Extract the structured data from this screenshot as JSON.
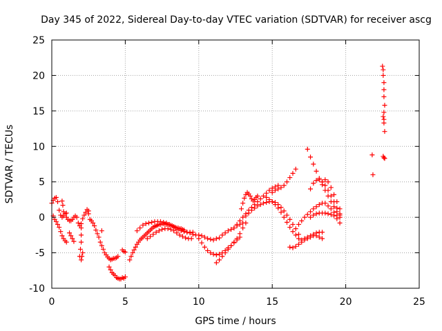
{
  "chart_data": {
    "type": "scatter",
    "title": "Day 345 of 2022, Sidereal Day-to-day VTEC variation (SDTVAR) for receiver ascg",
    "xlabel": "GPS time / hours",
    "ylabel": "SDTVAR / TECUs",
    "xlim": [
      0,
      25
    ],
    "ylim": [
      -10,
      25
    ],
    "xticks": [
      0,
      5,
      10,
      15,
      20,
      25
    ],
    "yticks": [
      -10,
      -5,
      0,
      5,
      10,
      15,
      20,
      25
    ],
    "xtick_labels": [
      "0",
      "5",
      "10",
      "15",
      "20",
      "25"
    ],
    "ytick_labels": [
      "-10",
      "-5",
      "0",
      "5",
      "10",
      "15",
      "20",
      "25"
    ],
    "grid": true,
    "marker": "+",
    "color": "#ff0000",
    "series": [
      {
        "name": "a_early",
        "x": [
          0.0,
          0.1,
          0.2,
          0.3,
          0.4,
          0.5,
          0.6,
          0.7,
          0.8,
          0.9,
          1.0
        ],
        "y": [
          2.0,
          2.4,
          2.7,
          2.8,
          2.2,
          1.0,
          0.3,
          0.0,
          0.2,
          0.5,
          0.6
        ]
      },
      {
        "name": "b_early",
        "x": [
          0.1,
          0.2,
          0.3,
          0.4,
          0.5,
          0.6,
          0.7,
          0.8,
          0.9,
          1.0
        ],
        "y": [
          0.2,
          -0.3,
          -0.6,
          -1.0,
          -1.4,
          -2.0,
          -2.6,
          -3.0,
          -3.3,
          -3.5
        ]
      },
      {
        "name": "c_early",
        "x": [
          0.7,
          0.75,
          0.8
        ],
        "y": [
          2.3,
          1.7,
          0.8
        ]
      },
      {
        "name": "d_early",
        "x": [
          1.2,
          1.3,
          1.4,
          1.5
        ],
        "y": [
          -2.2,
          -2.6,
          -3.0,
          -3.4
        ]
      },
      {
        "name": "e_early",
        "x": [
          1.0,
          1.1,
          1.2,
          1.3,
          1.4,
          1.5,
          1.6,
          1.7,
          1.8,
          1.9,
          2.0,
          2.1,
          2.2,
          2.3,
          2.4,
          2.5
        ],
        "y": [
          0.0,
          -0.3,
          -0.5,
          -0.5,
          -0.3,
          0.0,
          0.2,
          0.0,
          -0.8,
          -1.2,
          -0.9,
          -0.2,
          0.3,
          0.7,
          1.1,
          0.9
        ]
      },
      {
        "name": "f_early",
        "x": [
          2.0,
          2.0,
          2.0,
          1.95,
          1.9
        ],
        "y": [
          -1.5,
          -2.5,
          -3.5,
          -4.5,
          -5.5
        ]
      },
      {
        "name": "g_early",
        "x": [
          2.1,
          2.05,
          2.0
        ],
        "y": [
          -5.0,
          -5.5,
          -6.0
        ]
      },
      {
        "name": "h_early",
        "x": [
          2.5,
          2.6,
          2.7,
          2.8,
          2.9,
          3.0,
          3.1,
          3.2,
          3.3,
          3.4,
          3.5,
          3.6,
          3.7,
          3.8,
          3.9,
          4.0,
          4.1,
          4.2,
          4.3,
          4.4,
          4.5
        ],
        "y": [
          0.5,
          -0.3,
          -0.5,
          -0.8,
          -1.2,
          -1.8,
          -2.3,
          -2.8,
          -3.5,
          -4.0,
          -4.5,
          -5.0,
          -5.3,
          -5.6,
          -5.8,
          -6.0,
          -5.9,
          -5.8,
          -5.8,
          -5.7,
          -5.5
        ]
      },
      {
        "name": "i_early",
        "x": [
          3.4
        ],
        "y": [
          -1.9
        ]
      },
      {
        "name": "j_mid",
        "x": [
          3.9,
          4.0,
          4.1,
          4.2,
          4.3,
          4.4,
          4.5,
          4.6,
          4.7,
          4.8,
          4.9,
          5.0
        ],
        "y": [
          -7.0,
          -7.4,
          -7.8,
          -8.0,
          -8.2,
          -8.5,
          -8.6,
          -8.7,
          -8.7,
          -8.5,
          -8.6,
          -8.4
        ]
      },
      {
        "name": "k_mid",
        "x": [
          4.8,
          4.9,
          5.0
        ],
        "y": [
          -4.6,
          -4.8,
          -4.9
        ]
      },
      {
        "name": "l_main",
        "x": [
          5.3,
          5.4,
          5.5,
          5.6,
          5.7,
          5.8,
          5.9,
          6.0,
          6.1,
          6.2,
          6.3,
          6.4,
          6.5,
          6.6,
          6.7,
          6.8,
          6.9,
          7.0,
          7.1,
          7.2,
          7.3,
          7.4,
          7.5,
          7.6,
          7.7,
          7.8,
          7.9,
          8.0,
          8.1,
          8.2,
          8.3,
          8.4,
          8.5,
          8.6,
          8.7,
          8.8,
          8.9,
          9.0
        ],
        "y": [
          -6.0,
          -5.5,
          -5.0,
          -4.6,
          -4.2,
          -3.8,
          -3.5,
          -3.2,
          -3.0,
          -2.8,
          -2.6,
          -2.4,
          -2.2,
          -2.0,
          -1.8,
          -1.6,
          -1.4,
          -1.3,
          -1.2,
          -1.1,
          -1.0,
          -1.0,
          -0.9,
          -0.9,
          -0.9,
          -1.0,
          -1.0,
          -1.1,
          -1.1,
          -1.2,
          -1.3,
          -1.4,
          -1.5,
          -1.5,
          -1.6,
          -1.6,
          -1.7,
          -1.8
        ]
      },
      {
        "name": "m_main",
        "x": [
          5.8,
          6.0,
          6.2,
          6.4,
          6.6,
          6.8,
          7.0,
          7.2,
          7.4,
          7.6,
          7.8,
          8.0,
          8.2,
          8.4,
          8.6,
          8.8,
          9.0,
          9.2,
          9.4,
          9.6
        ],
        "y": [
          -1.9,
          -1.5,
          -1.1,
          -0.9,
          -0.8,
          -0.7,
          -0.6,
          -0.6,
          -0.6,
          -0.7,
          -0.8,
          -1.0,
          -1.2,
          -1.5,
          -1.7,
          -1.9,
          -2.0,
          -2.1,
          -2.1,
          -2.1
        ]
      },
      {
        "name": "n_main",
        "x": [
          6.5,
          6.7,
          6.9,
          7.1,
          7.3,
          7.5,
          7.7,
          7.9,
          8.1,
          8.3,
          8.5,
          8.7,
          8.9,
          9.1,
          9.3,
          9.5
        ],
        "y": [
          -3.0,
          -2.7,
          -2.4,
          -2.1,
          -1.9,
          -1.7,
          -1.6,
          -1.6,
          -1.7,
          -1.9,
          -2.2,
          -2.5,
          -2.7,
          -2.9,
          -3.0,
          -3.0
        ]
      },
      {
        "name": "o_main",
        "x": [
          9.0,
          9.2,
          9.4,
          9.6,
          9.8,
          10.0,
          10.2,
          10.4,
          10.6,
          10.8,
          11.0,
          11.2,
          11.4,
          11.6,
          11.8,
          12.0,
          12.2,
          12.4,
          12.6,
          12.8,
          13.0
        ],
        "y": [
          -2.0,
          -2.1,
          -2.2,
          -2.4,
          -2.5,
          -2.5,
          -2.6,
          -2.8,
          -3.0,
          -3.1,
          -3.2,
          -3.0,
          -2.9,
          -2.5,
          -2.2,
          -1.9,
          -1.7,
          -1.5,
          -1.2,
          -1.0,
          -0.8
        ]
      },
      {
        "name": "p_main",
        "x": [
          10.0,
          10.2,
          10.4,
          10.6,
          10.8,
          11.0,
          11.2,
          11.4,
          11.6,
          11.8,
          12.0,
          12.2,
          12.4,
          12.6,
          12.8
        ],
        "y": [
          -3.0,
          -3.6,
          -4.2,
          -4.7,
          -5.0,
          -5.2,
          -5.3,
          -5.2,
          -5.0,
          -4.7,
          -4.3,
          -4.0,
          -3.6,
          -3.2,
          -2.8
        ]
      },
      {
        "name": "q_main",
        "x": [
          11.2,
          11.4,
          11.6,
          11.8,
          12.0,
          12.2,
          12.4,
          12.6,
          12.8,
          13.0,
          13.2
        ],
        "y": [
          -6.4,
          -6.0,
          -5.5,
          -5.0,
          -4.5,
          -4.0,
          -3.5,
          -3.0,
          -2.3,
          -1.5,
          -0.8
        ]
      },
      {
        "name": "r_main",
        "x": [
          12.4,
          12.6,
          12.8,
          13.0,
          13.2,
          13.4,
          13.6,
          13.8,
          14.0,
          14.2,
          14.4,
          14.6,
          14.8,
          15.0,
          15.2,
          15.4
        ],
        "y": [
          -1.5,
          -1.0,
          -0.5,
          0.0,
          0.5,
          1.0,
          1.4,
          1.8,
          2.2,
          2.6,
          3.0,
          3.4,
          3.8,
          4.1,
          4.3,
          4.5
        ]
      },
      {
        "name": "s_main",
        "x": [
          12.9,
          13.0,
          13.1,
          13.2,
          13.3,
          13.4,
          13.5,
          13.6,
          13.7,
          13.8,
          13.9,
          14.0
        ],
        "y": [
          1.2,
          2.0,
          2.7,
          3.2,
          3.5,
          3.3,
          3.0,
          2.6,
          2.3,
          2.5,
          2.8,
          3.0
        ]
      },
      {
        "name": "t_main",
        "x": [
          13.2,
          13.4,
          13.6,
          13.8,
          14.0,
          14.2,
          14.4,
          14.6,
          14.8,
          15.0,
          15.2,
          15.4,
          15.6,
          15.8,
          16.0,
          16.2,
          16.4,
          16.6,
          16.8
        ],
        "y": [
          0.2,
          0.6,
          1.0,
          1.3,
          1.6,
          1.8,
          2.0,
          2.1,
          2.2,
          2.2,
          2.1,
          1.8,
          1.4,
          0.9,
          0.3,
          -0.3,
          -1.0,
          -1.6,
          -2.4
        ]
      },
      {
        "name": "u_main",
        "x": [
          15.0,
          15.2,
          15.4,
          15.6,
          15.8,
          16.0,
          16.2,
          16.4,
          16.6
        ],
        "y": [
          3.5,
          3.8,
          4.0,
          4.2,
          4.5,
          5.0,
          5.6,
          6.2,
          6.8
        ]
      },
      {
        "name": "v_main",
        "x": [
          14.6,
          14.8,
          15.0,
          15.2,
          15.4,
          15.6,
          15.8,
          16.0,
          16.2,
          16.4,
          16.6,
          16.8,
          17.0,
          17.2,
          17.4,
          17.6,
          17.8,
          18.0,
          18.2,
          18.4
        ],
        "y": [
          2.8,
          2.5,
          2.2,
          1.8,
          1.3,
          0.7,
          0.0,
          -0.7,
          -1.4,
          -2.0,
          -2.5,
          -3.0,
          -3.2,
          -3.0,
          -2.8,
          -2.6,
          -2.4,
          -2.2,
          -2.1,
          -2.1
        ]
      },
      {
        "name": "w_main",
        "x": [
          16.2,
          16.4,
          16.6,
          16.8,
          17.0,
          17.2,
          17.4,
          17.6,
          17.8,
          18.0,
          18.2,
          18.4
        ],
        "y": [
          -4.2,
          -4.3,
          -4.1,
          -3.8,
          -3.5,
          -3.2,
          -3.0,
          -2.8,
          -2.6,
          -2.6,
          -2.8,
          -3.0
        ]
      },
      {
        "name": "x_main",
        "x": [
          16.8,
          17.0,
          17.2,
          17.4,
          17.6,
          17.8,
          18.0,
          18.2,
          18.4,
          18.6,
          18.8,
          19.0,
          19.2,
          19.4,
          19.6
        ],
        "y": [
          -1.0,
          -0.5,
          0.0,
          0.4,
          0.8,
          1.2,
          1.5,
          1.8,
          2.0,
          2.0,
          1.6,
          1.2,
          0.7,
          0.3,
          0.0
        ]
      },
      {
        "name": "y_main",
        "x": [
          17.4,
          17.6,
          17.8,
          18.0,
          18.2,
          18.4,
          18.6,
          18.8,
          19.0,
          19.2,
          19.4,
          19.6
        ],
        "y": [
          9.6,
          8.5,
          7.5,
          6.5,
          5.5,
          4.6,
          3.8,
          3.0,
          2.2,
          1.5,
          0.8,
          0.3
        ]
      },
      {
        "name": "z_main",
        "x": [
          17.6,
          17.8,
          18.0,
          18.2,
          18.4,
          18.6,
          18.8,
          19.0,
          19.2,
          19.4,
          19.6
        ],
        "y": [
          4.0,
          4.8,
          5.2,
          5.3,
          5.0,
          4.5,
          3.8,
          3.0,
          2.2,
          1.3,
          0.5
        ]
      },
      {
        "name": "aa_main",
        "x": [
          18.4,
          18.6,
          18.8,
          19.0,
          19.2,
          19.4,
          19.6
        ],
        "y": [
          5.0,
          5.3,
          5.0,
          4.2,
          3.2,
          2.2,
          1.2
        ]
      },
      {
        "name": "ab_main",
        "x": [
          17.6,
          17.8,
          18.0,
          18.2,
          18.4,
          18.6,
          18.8,
          19.0,
          19.2,
          19.4,
          19.6
        ],
        "y": [
          0.0,
          0.3,
          0.5,
          0.6,
          0.6,
          0.6,
          0.5,
          0.4,
          0.2,
          -0.2,
          -0.8
        ]
      },
      {
        "name": "ac_late",
        "x": [
          21.8,
          21.85
        ],
        "y": [
          8.8,
          6.0
        ]
      },
      {
        "name": "ad_late",
        "x": [
          22.5,
          22.55,
          22.55,
          22.6,
          22.6,
          22.6,
          22.65,
          22.6,
          22.55,
          22.6,
          22.6,
          22.65,
          22.55,
          22.6,
          22.65
        ],
        "y": [
          21.3,
          20.8,
          20.0,
          19.0,
          18.0,
          17.0,
          15.8,
          14.8,
          14.2,
          13.8,
          13.3,
          12.1,
          8.6,
          8.4,
          8.3
        ]
      }
    ]
  }
}
